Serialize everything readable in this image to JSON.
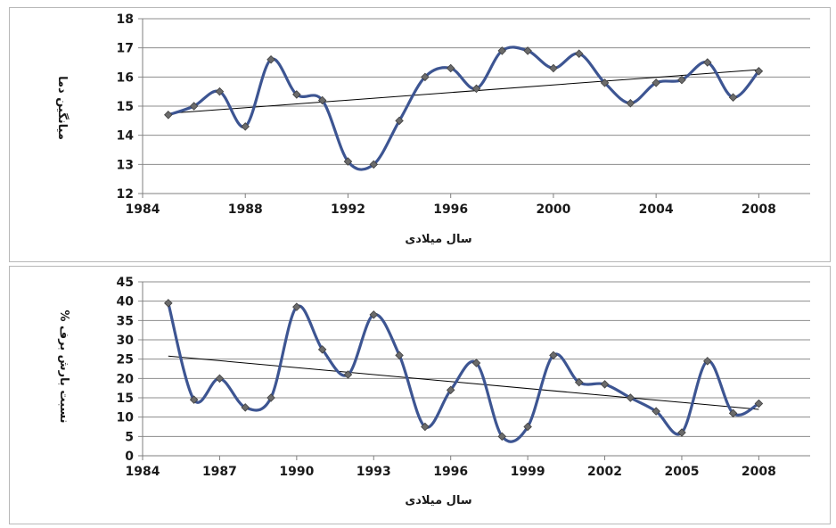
{
  "colors": {
    "series": "#3d5592",
    "marker": "#6b6b6b",
    "trend": "#000000",
    "grid": "#8c8c8c",
    "axis": "#7f7f7f"
  },
  "chart_data": [
    {
      "type": "line",
      "title": "",
      "xlabel": "سال میلادی",
      "ylabel": "میانگین دما",
      "xlim": [
        1984,
        2010
      ],
      "ylim": [
        12,
        18
      ],
      "x_ticks": [
        1984,
        1988,
        1992,
        1996,
        2000,
        2004,
        2008
      ],
      "y_ticks": [
        12,
        13,
        14,
        15,
        16,
        17,
        18
      ],
      "grid": true,
      "legend": "none",
      "series": [
        {
          "x": [
            1985,
            1986,
            1987,
            1988,
            1989,
            1990,
            1991,
            1992,
            1993,
            1994,
            1995,
            1996,
            1997,
            1998,
            1999,
            2000,
            2001,
            2002,
            2003,
            2004,
            2005,
            2006,
            2007,
            2008
          ],
          "y": [
            14.7,
            15.0,
            15.5,
            14.3,
            16.6,
            15.4,
            15.2,
            13.1,
            13.0,
            14.5,
            16.0,
            16.3,
            15.6,
            16.9,
            16.9,
            16.3,
            16.8,
            15.8,
            15.1,
            15.8,
            15.9,
            16.5,
            15.3,
            16.2
          ]
        }
      ],
      "trendline": {
        "x": [
          1985,
          2008
        ],
        "y": [
          14.75,
          16.25
        ]
      }
    },
    {
      "type": "line",
      "title": "",
      "xlabel": "سال میلادی",
      "ylabel": "نسبت بارش برف %",
      "xlim": [
        1984,
        2010
      ],
      "ylim": [
        0,
        45
      ],
      "x_ticks": [
        1984,
        1987,
        1990,
        1993,
        1996,
        1999,
        2002,
        2005,
        2008
      ],
      "y_ticks": [
        0,
        5,
        10,
        15,
        20,
        25,
        30,
        35,
        40,
        45
      ],
      "grid": true,
      "legend": "none",
      "series": [
        {
          "x": [
            1985,
            1986,
            1987,
            1988,
            1989,
            1990,
            1991,
            1992,
            1993,
            1994,
            1995,
            1996,
            1997,
            1998,
            1999,
            2000,
            2001,
            2002,
            2003,
            2004,
            2005,
            2006,
            2007,
            2008
          ],
          "y": [
            39.5,
            14.5,
            20.0,
            12.5,
            15.0,
            38.5,
            27.5,
            21.0,
            36.5,
            26.0,
            7.5,
            17.0,
            24.0,
            5.0,
            7.5,
            26.0,
            19.0,
            18.5,
            15.0,
            11.5,
            6.0,
            24.5,
            11.0,
            13.5
          ]
        }
      ],
      "trendline": {
        "x": [
          1985,
          2008
        ],
        "y": [
          25.8,
          12.0
        ]
      }
    }
  ]
}
